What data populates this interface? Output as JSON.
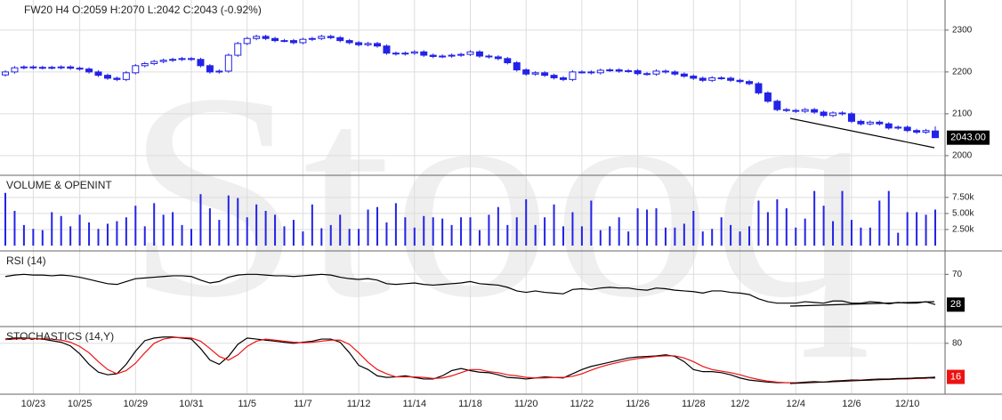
{
  "chart_data": [
    {
      "type": "candlestick",
      "title": "FW20  H4  O:2059 H:2070  L:2042  C:2043  (-0.92%)",
      "watermark": "Stooq",
      "color": "#2323e8",
      "categories": [
        null,
        null,
        null,
        "10/23",
        null,
        null,
        null,
        null,
        "10/25",
        null,
        null,
        null,
        null,
        null,
        "10/29",
        null,
        null,
        null,
        null,
        null,
        "10/31",
        null,
        null,
        null,
        null,
        null,
        "11/5",
        null,
        null,
        null,
        null,
        null,
        "11/7",
        null,
        null,
        null,
        null,
        null,
        "11/12",
        null,
        null,
        null,
        null,
        null,
        "11/14",
        null,
        null,
        null,
        null,
        null,
        "11/18",
        null,
        null,
        null,
        null,
        null,
        "11/20",
        null,
        null,
        null,
        null,
        null,
        "11/22",
        null,
        null,
        null,
        null,
        null,
        "11/26",
        null,
        null,
        null,
        null,
        null,
        "11/28",
        null,
        null,
        null,
        null,
        "12/2",
        null,
        null,
        null,
        null,
        null,
        "12/4",
        null,
        null,
        null,
        null,
        null,
        "12/6",
        null,
        null,
        null,
        null,
        null,
        "12/10",
        null,
        null,
        null
      ],
      "open": [
        2193,
        2200,
        2210,
        2212,
        2210,
        2211,
        2210,
        2212,
        2209,
        2207,
        2200,
        2192,
        2185,
        2182,
        2198,
        2215,
        2220,
        2225,
        2228,
        2230,
        2232,
        2230,
        2215,
        2200,
        2202,
        2240,
        2268,
        2280,
        2285,
        2280,
        2275,
        2275,
        2270,
        2278,
        2280,
        2285,
        2282,
        2275,
        2270,
        2265,
        2268,
        2262,
        2245,
        2243,
        2245,
        2248,
        2240,
        2237,
        2238,
        2240,
        2242,
        2248,
        2238,
        2236,
        2232,
        2222,
        2205,
        2195,
        2198,
        2192,
        2186,
        2182,
        2200,
        2200,
        2198,
        2204,
        2205,
        2202,
        2203,
        2196,
        2195,
        2202,
        2200,
        2195,
        2190,
        2185,
        2180,
        2186,
        2185,
        2180,
        2177,
        2172,
        2150,
        2130,
        2110,
        2108,
        2106,
        2110,
        2104,
        2096,
        2102,
        2100,
        2082,
        2076,
        2080,
        2076,
        2066,
        2068,
        2060,
        2056,
        2059
      ],
      "high": [
        2204,
        2214,
        2216,
        2216,
        2215,
        2215,
        2216,
        2216,
        2213,
        2211,
        2204,
        2196,
        2189,
        2202,
        2219,
        2224,
        2229,
        2232,
        2234,
        2236,
        2236,
        2234,
        2219,
        2206,
        2244,
        2272,
        2284,
        2289,
        2289,
        2284,
        2279,
        2279,
        2282,
        2284,
        2289,
        2289,
        2286,
        2279,
        2274,
        2272,
        2272,
        2266,
        2249,
        2249,
        2252,
        2252,
        2244,
        2242,
        2244,
        2246,
        2252,
        2252,
        2242,
        2240,
        2236,
        2226,
        2209,
        2202,
        2202,
        2196,
        2190,
        2204,
        2204,
        2204,
        2208,
        2209,
        2209,
        2207,
        2207,
        2200,
        2206,
        2206,
        2204,
        2199,
        2194,
        2189,
        2190,
        2190,
        2189,
        2184,
        2181,
        2176,
        2154,
        2134,
        2114,
        2112,
        2114,
        2114,
        2108,
        2106,
        2106,
        2104,
        2086,
        2084,
        2084,
        2080,
        2072,
        2072,
        2064,
        2064,
        2070
      ],
      "low": [
        2189,
        2196,
        2206,
        2206,
        2206,
        2206,
        2206,
        2205,
        2203,
        2196,
        2188,
        2181,
        2178,
        2178,
        2194,
        2211,
        2216,
        2221,
        2224,
        2226,
        2226,
        2211,
        2196,
        2196,
        2198,
        2236,
        2264,
        2276,
        2276,
        2271,
        2271,
        2266,
        2266,
        2274,
        2276,
        2278,
        2271,
        2266,
        2261,
        2261,
        2258,
        2241,
        2239,
        2239,
        2241,
        2236,
        2233,
        2233,
        2234,
        2236,
        2238,
        2234,
        2232,
        2228,
        2218,
        2201,
        2191,
        2191,
        2188,
        2182,
        2178,
        2178,
        2196,
        2194,
        2194,
        2200,
        2198,
        2198,
        2192,
        2191,
        2191,
        2196,
        2191,
        2186,
        2181,
        2176,
        2176,
        2181,
        2176,
        2173,
        2168,
        2146,
        2126,
        2106,
        2104,
        2102,
        2102,
        2100,
        2092,
        2092,
        2096,
        2078,
        2072,
        2072,
        2072,
        2062,
        2062,
        2056,
        2052,
        2052,
        2042
      ],
      "close": [
        2200,
        2210,
        2212,
        2210,
        2211,
        2210,
        2212,
        2209,
        2207,
        2200,
        2192,
        2185,
        2182,
        2198,
        2215,
        2220,
        2225,
        2228,
        2230,
        2232,
        2230,
        2215,
        2200,
        2202,
        2240,
        2268,
        2280,
        2285,
        2280,
        2275,
        2275,
        2270,
        2278,
        2280,
        2285,
        2282,
        2275,
        2270,
        2265,
        2268,
        2262,
        2245,
        2243,
        2245,
        2248,
        2240,
        2237,
        2238,
        2240,
        2242,
        2248,
        2238,
        2236,
        2232,
        2222,
        2205,
        2195,
        2198,
        2192,
        2186,
        2182,
        2200,
        2200,
        2198,
        2204,
        2205,
        2202,
        2203,
        2196,
        2195,
        2202,
        2200,
        2195,
        2190,
        2185,
        2180,
        2186,
        2185,
        2180,
        2177,
        2172,
        2150,
        2130,
        2110,
        2108,
        2106,
        2110,
        2104,
        2096,
        2102,
        2100,
        2082,
        2076,
        2080,
        2076,
        2066,
        2068,
        2060,
        2056,
        2060,
        2043
      ],
      "last_value_label": "2043.00",
      "ylim": [
        1953,
        2372
      ],
      "yticks": [
        2000,
        2100,
        2200,
        2300
      ],
      "grid": true
    },
    {
      "type": "bar",
      "title": "VOLUME & OPENINT",
      "color": "#2323e8",
      "values": [
        8200,
        5400,
        3200,
        2600,
        2400,
        5200,
        4600,
        3000,
        4800,
        3600,
        2600,
        3400,
        3800,
        4400,
        6200,
        3000,
        6600,
        4800,
        5200,
        3200,
        2600,
        8000,
        5800,
        4000,
        7800,
        7400,
        4400,
        6400,
        5400,
        4800,
        3000,
        4000,
        2200,
        6400,
        2700,
        3200,
        4800,
        2600,
        2600,
        5600,
        6000,
        3600,
        6600,
        4400,
        2800,
        4600,
        4400,
        4200,
        3200,
        4400,
        4400,
        2400,
        4800,
        6000,
        3200,
        4400,
        7200,
        3200,
        4400,
        6400,
        3000,
        5200,
        3000,
        7000,
        2400,
        3000,
        4400,
        2200,
        5800,
        5600,
        5800,
        2800,
        2800,
        3400,
        5400,
        2200,
        2600,
        4400,
        3200,
        2200,
        3000,
        7000,
        5200,
        7200,
        5800,
        2800,
        4200,
        8500,
        6200,
        3800,
        8500,
        4000,
        2800,
        2800,
        7000,
        8500,
        2000,
        5200,
        5200,
        4800,
        5600
      ],
      "ylim": [
        0,
        10800
      ],
      "yticks": [
        {
          "value": 2500,
          "label": "2.50k"
        },
        {
          "value": 5000,
          "label": "5.00k"
        },
        {
          "value": 7500,
          "label": "7.50k"
        }
      ],
      "grid": true
    },
    {
      "type": "line",
      "title": "RSI (14)",
      "series": [
        {
          "color": "#000000",
          "values": [
            67,
            69,
            70,
            69,
            69,
            68,
            69,
            68,
            66,
            63,
            60,
            57,
            56,
            60,
            64,
            65,
            66,
            67,
            68,
            68,
            67,
            62,
            58,
            60,
            66,
            69,
            70,
            70,
            69,
            68,
            68,
            67,
            68,
            69,
            70,
            69,
            66,
            64,
            63,
            64,
            62,
            57,
            56,
            57,
            58,
            56,
            55,
            56,
            57,
            58,
            60,
            57,
            56,
            55,
            52,
            47,
            45,
            47,
            45,
            44,
            43,
            49,
            50,
            49,
            51,
            52,
            51,
            51,
            49,
            48,
            51,
            50,
            48,
            47,
            46,
            44,
            47,
            47,
            45,
            44,
            42,
            36,
            32,
            30,
            30,
            30,
            32,
            31,
            30,
            33,
            33,
            30,
            30,
            32,
            31,
            29,
            31,
            30,
            30,
            32,
            28
          ]
        }
      ],
      "ylim": [
        0,
        100
      ],
      "yticks": [
        70
      ],
      "grid": true
    },
    {
      "type": "line",
      "title": "STOCHASTICS (14,Y)",
      "series": [
        {
          "color": "#000000",
          "values": [
            88,
            90,
            90,
            89,
            88,
            85,
            82,
            75,
            60,
            40,
            25,
            20,
            22,
            40,
            65,
            85,
            90,
            92,
            92,
            90,
            88,
            70,
            48,
            40,
            55,
            78,
            90,
            88,
            86,
            84,
            82,
            80,
            82,
            84,
            88,
            88,
            82,
            62,
            38,
            30,
            18,
            15,
            16,
            18,
            15,
            12,
            12,
            18,
            28,
            32,
            28,
            25,
            24,
            20,
            15,
            14,
            12,
            14,
            16,
            15,
            14,
            22,
            30,
            36,
            40,
            44,
            48,
            52,
            54,
            55,
            56,
            58,
            55,
            45,
            30,
            26,
            26,
            24,
            20,
            14,
            10,
            8,
            6,
            5,
            5,
            5,
            6,
            7,
            6,
            8,
            9,
            10,
            10,
            11,
            12,
            12,
            13,
            13,
            14,
            14,
            14
          ]
        },
        {
          "color": "#ee1111",
          "values": [
            87,
            88,
            89,
            89,
            89,
            88,
            86,
            82,
            74,
            62,
            45,
            30,
            22,
            28,
            42,
            62,
            80,
            88,
            91,
            91,
            90,
            84,
            70,
            55,
            48,
            58,
            74,
            84,
            88,
            86,
            84,
            82,
            81,
            82,
            84,
            86,
            86,
            78,
            62,
            44,
            30,
            22,
            16,
            16,
            16,
            15,
            13,
            14,
            18,
            24,
            30,
            30,
            26,
            24,
            20,
            18,
            15,
            14,
            14,
            15,
            15,
            17,
            22,
            29,
            35,
            40,
            44,
            48,
            51,
            53,
            55,
            56,
            56,
            52,
            45,
            36,
            30,
            27,
            24,
            20,
            15,
            11,
            8,
            6,
            5,
            5,
            5,
            6,
            6,
            7,
            8,
            9,
            10,
            10,
            11,
            11,
            12,
            12,
            13,
            13,
            16
          ]
        }
      ],
      "ylim": [
        0,
        100
      ],
      "yticks": [
        80
      ],
      "grid": true
    }
  ]
}
